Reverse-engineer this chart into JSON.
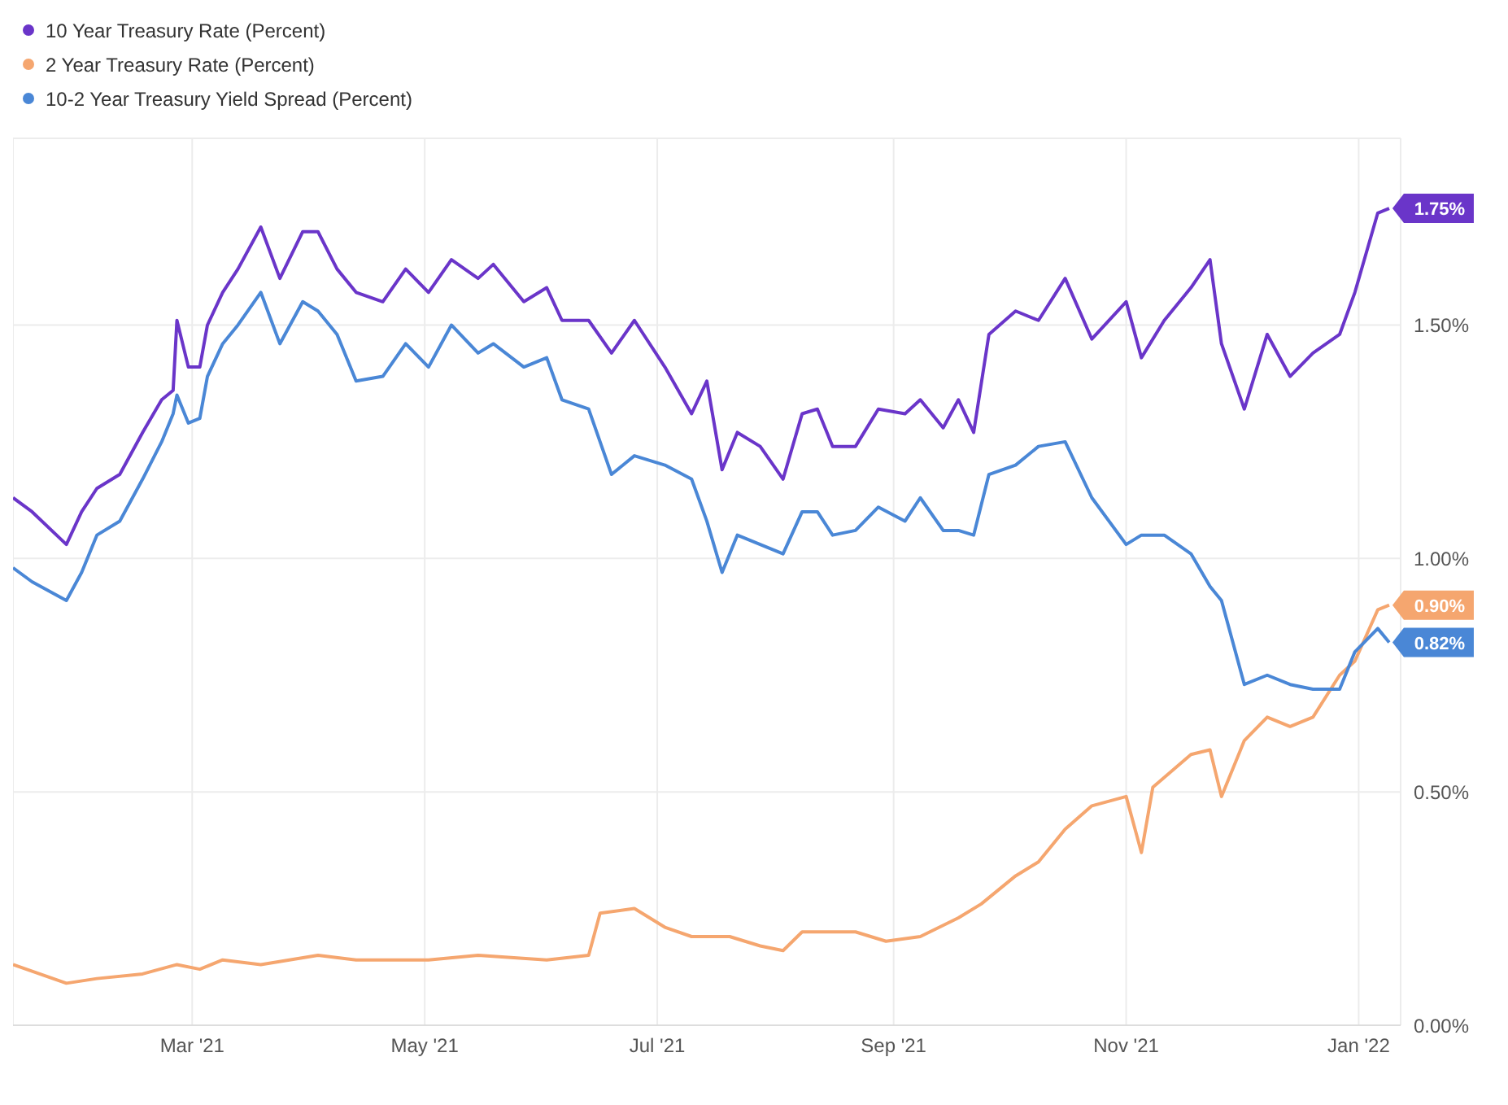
{
  "chart_data": {
    "type": "line",
    "legend": "top left",
    "grid": true,
    "marker": "none",
    "line_style": "solid",
    "xlim": [
      "2021-01-13",
      "2022-01-12"
    ],
    "ylim": [
      0,
      1.9
    ],
    "xticks": [
      {
        "value": "2021-03-01",
        "label": "Mar '21"
      },
      {
        "value": "2021-05-01",
        "label": "May '21"
      },
      {
        "value": "2021-07-01",
        "label": "Jul '21"
      },
      {
        "value": "2021-09-01",
        "label": "Sep '21"
      },
      {
        "value": "2021-11-01",
        "label": "Nov '21"
      },
      {
        "value": "2022-01-01",
        "label": "Jan '22"
      }
    ],
    "yticks": [
      {
        "value": 0,
        "label": "0.00%"
      },
      {
        "value": 0.5,
        "label": "0.50%"
      },
      {
        "value": 1,
        "label": "1.00%"
      },
      {
        "value": 1.5,
        "label": "1.50%"
      }
    ],
    "series": [
      {
        "name": "10 Year Treasury Rate (Percent)",
        "color": "#6a35c9",
        "x": [
          "2021-01-13",
          "2021-01-18",
          "2021-01-27",
          "2021-01-31",
          "2021-02-04",
          "2021-02-10",
          "2021-02-16",
          "2021-02-21",
          "2021-02-24",
          "2021-02-25",
          "2021-02-28",
          "2021-03-03",
          "2021-03-05",
          "2021-03-09",
          "2021-03-13",
          "2021-03-19",
          "2021-03-24",
          "2021-03-30",
          "2021-04-03",
          "2021-04-08",
          "2021-04-13",
          "2021-04-20",
          "2021-04-26",
          "2021-05-02",
          "2021-05-08",
          "2021-05-15",
          "2021-05-19",
          "2021-05-27",
          "2021-06-02",
          "2021-06-06",
          "2021-06-13",
          "2021-06-19",
          "2021-06-25",
          "2021-07-03",
          "2021-07-10",
          "2021-07-14",
          "2021-07-18",
          "2021-07-22",
          "2021-07-28",
          "2021-08-03",
          "2021-08-08",
          "2021-08-12",
          "2021-08-16",
          "2021-08-22",
          "2021-08-28",
          "2021-09-04",
          "2021-09-08",
          "2021-09-14",
          "2021-09-18",
          "2021-09-22",
          "2021-09-26",
          "2021-10-03",
          "2021-10-09",
          "2021-10-16",
          "2021-10-23",
          "2021-11-01",
          "2021-11-05",
          "2021-11-11",
          "2021-11-18",
          "2021-11-23",
          "2021-11-26",
          "2021-12-02",
          "2021-12-08",
          "2021-12-14",
          "2021-12-20",
          "2021-12-27",
          "2021-12-31",
          "2022-01-06",
          "2022-01-09"
        ],
        "values": [
          1.13,
          1.1,
          1.03,
          1.1,
          1.15,
          1.18,
          1.27,
          1.34,
          1.36,
          1.51,
          1.41,
          1.41,
          1.5,
          1.57,
          1.62,
          1.71,
          1.6,
          1.7,
          1.7,
          1.62,
          1.57,
          1.55,
          1.62,
          1.57,
          1.64,
          1.6,
          1.63,
          1.55,
          1.58,
          1.51,
          1.51,
          1.44,
          1.51,
          1.41,
          1.31,
          1.38,
          1.19,
          1.27,
          1.24,
          1.17,
          1.31,
          1.32,
          1.24,
          1.24,
          1.32,
          1.31,
          1.34,
          1.28,
          1.34,
          1.27,
          1.48,
          1.53,
          1.51,
          1.6,
          1.47,
          1.55,
          1.43,
          1.51,
          1.58,
          1.64,
          1.46,
          1.32,
          1.48,
          1.39,
          1.44,
          1.48,
          1.57,
          1.74,
          1.75
        ],
        "value_labels": [
          null,
          null,
          null,
          null,
          null,
          null,
          null,
          null,
          null,
          null,
          null,
          null,
          null,
          null,
          null,
          null,
          null,
          null,
          null,
          null,
          null,
          null,
          null,
          null,
          null,
          null,
          null,
          null,
          null,
          null,
          null,
          null,
          null,
          null,
          null,
          null,
          null,
          null,
          null,
          null,
          null,
          null,
          null,
          null,
          null,
          null,
          null,
          null,
          null,
          null,
          null,
          null,
          null,
          null,
          null,
          null,
          null,
          null,
          null,
          null,
          null,
          null,
          null,
          null,
          null,
          null,
          null,
          null,
          "1.75%"
        ]
      },
      {
        "name": "2 Year Treasury Rate (Percent)",
        "color": "#f5a66f",
        "x": [
          "2021-01-13",
          "2021-01-27",
          "2021-02-04",
          "2021-02-16",
          "2021-02-25",
          "2021-03-03",
          "2021-03-09",
          "2021-03-19",
          "2021-04-03",
          "2021-04-13",
          "2021-05-02",
          "2021-05-15",
          "2021-06-02",
          "2021-06-13",
          "2021-06-16",
          "2021-06-25",
          "2021-07-03",
          "2021-07-10",
          "2021-07-20",
          "2021-07-28",
          "2021-08-03",
          "2021-08-08",
          "2021-08-22",
          "2021-08-30",
          "2021-09-08",
          "2021-09-18",
          "2021-09-24",
          "2021-10-03",
          "2021-10-09",
          "2021-10-16",
          "2021-10-23",
          "2021-11-01",
          "2021-11-05",
          "2021-11-08",
          "2021-11-18",
          "2021-11-23",
          "2021-11-26",
          "2021-12-02",
          "2021-12-08",
          "2021-12-14",
          "2021-12-20",
          "2021-12-27",
          "2021-12-31",
          "2022-01-06",
          "2022-01-09"
        ],
        "values": [
          0.13,
          0.09,
          0.1,
          0.11,
          0.13,
          0.12,
          0.14,
          0.13,
          0.15,
          0.14,
          0.14,
          0.15,
          0.14,
          0.15,
          0.24,
          0.25,
          0.21,
          0.19,
          0.19,
          0.17,
          0.16,
          0.2,
          0.2,
          0.18,
          0.19,
          0.23,
          0.26,
          0.32,
          0.35,
          0.42,
          0.47,
          0.49,
          0.37,
          0.51,
          0.58,
          0.59,
          0.49,
          0.61,
          0.66,
          0.64,
          0.66,
          0.75,
          0.78,
          0.89,
          0.9
        ],
        "value_labels": [
          null,
          null,
          null,
          null,
          null,
          null,
          null,
          null,
          null,
          null,
          null,
          null,
          null,
          null,
          null,
          null,
          null,
          null,
          null,
          null,
          null,
          null,
          null,
          null,
          null,
          null,
          null,
          null,
          null,
          null,
          null,
          null,
          null,
          null,
          null,
          null,
          null,
          null,
          null,
          null,
          null,
          null,
          null,
          null,
          "0.90%"
        ]
      },
      {
        "name": "10-2 Year Treasury Yield Spread (Percent)",
        "color": "#4a87d6",
        "x": [
          "2021-01-13",
          "2021-01-18",
          "2021-01-27",
          "2021-01-31",
          "2021-02-04",
          "2021-02-10",
          "2021-02-16",
          "2021-02-21",
          "2021-02-24",
          "2021-02-25",
          "2021-02-28",
          "2021-03-03",
          "2021-03-05",
          "2021-03-09",
          "2021-03-13",
          "2021-03-19",
          "2021-03-24",
          "2021-03-30",
          "2021-04-03",
          "2021-04-08",
          "2021-04-13",
          "2021-04-20",
          "2021-04-26",
          "2021-05-02",
          "2021-05-08",
          "2021-05-15",
          "2021-05-19",
          "2021-05-27",
          "2021-06-02",
          "2021-06-06",
          "2021-06-13",
          "2021-06-19",
          "2021-06-25",
          "2021-07-03",
          "2021-07-10",
          "2021-07-14",
          "2021-07-18",
          "2021-07-22",
          "2021-07-28",
          "2021-08-03",
          "2021-08-08",
          "2021-08-12",
          "2021-08-16",
          "2021-08-22",
          "2021-08-28",
          "2021-09-04",
          "2021-09-08",
          "2021-09-14",
          "2021-09-18",
          "2021-09-22",
          "2021-09-26",
          "2021-10-03",
          "2021-10-09",
          "2021-10-16",
          "2021-10-23",
          "2021-11-01",
          "2021-11-05",
          "2021-11-11",
          "2021-11-18",
          "2021-11-23",
          "2021-11-26",
          "2021-12-02",
          "2021-12-08",
          "2021-12-14",
          "2021-12-20",
          "2021-12-27",
          "2021-12-31",
          "2022-01-06",
          "2022-01-09"
        ],
        "values": [
          0.98,
          0.95,
          0.91,
          0.97,
          1.05,
          1.08,
          1.17,
          1.25,
          1.31,
          1.35,
          1.29,
          1.3,
          1.39,
          1.46,
          1.5,
          1.57,
          1.46,
          1.55,
          1.53,
          1.48,
          1.38,
          1.39,
          1.46,
          1.41,
          1.5,
          1.44,
          1.46,
          1.41,
          1.43,
          1.34,
          1.32,
          1.18,
          1.22,
          1.2,
          1.17,
          1.08,
          0.97,
          1.05,
          1.03,
          1.01,
          1.1,
          1.1,
          1.05,
          1.06,
          1.11,
          1.08,
          1.13,
          1.06,
          1.06,
          1.05,
          1.18,
          1.2,
          1.24,
          1.25,
          1.13,
          1.03,
          1.05,
          1.05,
          1.01,
          0.94,
          0.91,
          0.73,
          0.75,
          0.73,
          0.72,
          0.72,
          0.8,
          0.85,
          0.82
        ],
        "value_labels": [
          null,
          null,
          null,
          null,
          null,
          null,
          null,
          null,
          null,
          null,
          null,
          null,
          null,
          null,
          null,
          null,
          null,
          null,
          null,
          null,
          null,
          null,
          null,
          null,
          null,
          null,
          null,
          null,
          null,
          null,
          null,
          null,
          null,
          null,
          null,
          null,
          null,
          null,
          null,
          null,
          null,
          null,
          null,
          null,
          null,
          null,
          null,
          null,
          null,
          null,
          null,
          null,
          null,
          null,
          null,
          null,
          null,
          null,
          null,
          null,
          null,
          null,
          null,
          null,
          null,
          null,
          null,
          null,
          "0.82%"
        ]
      }
    ]
  }
}
